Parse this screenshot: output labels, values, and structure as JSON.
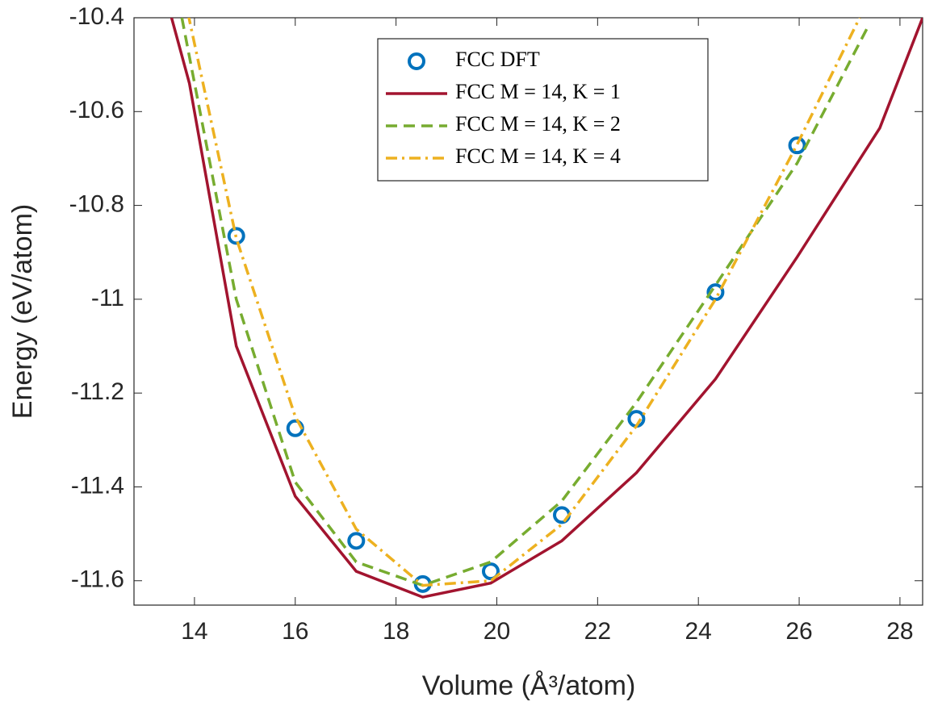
{
  "chart_data": {
    "type": "line",
    "xlabel": "Volume (Å³/atom)",
    "ylabel": "Energy (eV/atom)",
    "xlim": [
      12.8,
      28.45
    ],
    "ylim": [
      -11.652,
      -10.4
    ],
    "xticks": [
      14,
      16,
      18,
      20,
      22,
      24,
      26,
      28
    ],
    "yticks": [
      -11.6,
      -11.4,
      -11.2,
      -11,
      -10.8,
      -10.6,
      -10.4
    ],
    "legend": "top",
    "series": [
      {
        "name": "FCC DFT",
        "color": "#0072bd",
        "marker": "o",
        "x": [
          14.83,
          16.0,
          17.21,
          18.53,
          19.88,
          21.29,
          22.77,
          24.34,
          25.96
        ],
        "values": [
          -10.865,
          -11.275,
          -11.515,
          -11.607,
          -11.58,
          -11.46,
          -11.255,
          -10.985,
          -10.672
        ]
      },
      {
        "name": "FCC M = 14, K = 1",
        "color": "#a2142f",
        "linestyle": "-",
        "x": [
          13.52,
          13.9,
          14.83,
          16.0,
          17.21,
          18.53,
          19.88,
          21.29,
          22.77,
          24.34,
          25.96,
          27.6,
          28.45
        ],
        "values": [
          -10.39,
          -10.54,
          -11.1,
          -11.42,
          -11.58,
          -11.635,
          -11.605,
          -11.515,
          -11.37,
          -11.17,
          -10.91,
          -10.635,
          -10.4
        ]
      },
      {
        "name": "FCC M = 14, K = 2",
        "color": "#77ac30",
        "linestyle": "--",
        "x": [
          13.75,
          14.83,
          16.0,
          17.21,
          18.53,
          19.88,
          21.29,
          22.77,
          24.34,
          25.96,
          27.36
        ],
        "values": [
          -10.4,
          -11.0,
          -11.39,
          -11.56,
          -11.61,
          -11.56,
          -11.43,
          -11.22,
          -10.97,
          -10.71,
          -10.42
        ]
      },
      {
        "name": "FCC M = 14, K = 4",
        "color": "#edb120",
        "linestyle": "-.",
        "x": [
          13.87,
          14.83,
          16.0,
          17.21,
          18.53,
          19.88,
          21.29,
          22.77,
          24.34,
          25.96,
          27.2
        ],
        "values": [
          -10.39,
          -10.87,
          -11.25,
          -11.49,
          -11.61,
          -11.6,
          -11.48,
          -11.27,
          -11.0,
          -10.67,
          -10.4
        ]
      }
    ]
  }
}
